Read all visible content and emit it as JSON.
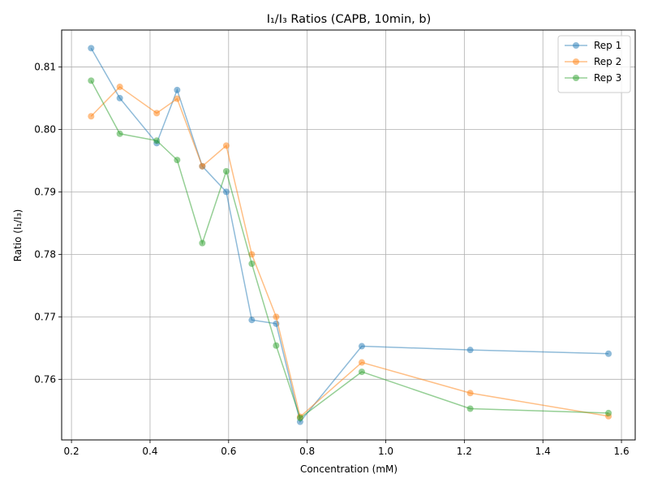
{
  "chart_data": {
    "type": "line",
    "title": "I₁/I₃ Ratios (CAPB, 10min, b)",
    "xlabel": "Concentration (mM)",
    "ylabel": "Ratio (I₁/I₃)",
    "xlim": [
      0.175,
      1.635
    ],
    "ylim": [
      0.7503,
      0.8159
    ],
    "xticks": [
      0.2,
      0.4,
      0.6,
      0.8,
      1.0,
      1.2,
      1.4,
      1.6
    ],
    "xtick_labels": [
      "0.2",
      "0.4",
      "0.6",
      "0.8",
      "1.0",
      "1.2",
      "1.4",
      "1.6"
    ],
    "yticks": [
      0.76,
      0.77,
      0.78,
      0.79,
      0.8,
      0.81
    ],
    "ytick_labels": [
      "0.76",
      "0.77",
      "0.78",
      "0.79",
      "0.80",
      "0.81"
    ],
    "grid": true,
    "legend_position": "top-right",
    "series": [
      {
        "name": "Rep 1",
        "color": "#1f77b4",
        "x": [
          0.25,
          0.323,
          0.417,
          0.469,
          0.533,
          0.594,
          0.659,
          0.721,
          0.782,
          0.939,
          1.215,
          1.567
        ],
        "y": [
          0.813,
          0.805,
          0.7978,
          0.8063,
          0.7941,
          0.79,
          0.7695,
          0.7689,
          0.7532,
          0.7653,
          0.7647,
          0.7641
        ]
      },
      {
        "name": "Rep 2",
        "color": "#ff7f0e",
        "x": [
          0.25,
          0.323,
          0.417,
          0.469,
          0.533,
          0.594,
          0.659,
          0.721,
          0.782,
          0.939,
          1.215,
          1.567
        ],
        "y": [
          0.8021,
          0.8068,
          0.8026,
          0.8049,
          0.7941,
          0.7974,
          0.78,
          0.77,
          0.754,
          0.7627,
          0.7578,
          0.7541
        ]
      },
      {
        "name": "Rep 3",
        "color": "#2ca02c",
        "x": [
          0.25,
          0.323,
          0.417,
          0.469,
          0.533,
          0.594,
          0.659,
          0.721,
          0.782,
          0.939,
          1.215,
          1.567
        ],
        "y": [
          0.8078,
          0.7993,
          0.7982,
          0.7951,
          0.7818,
          0.7933,
          0.7785,
          0.7654,
          0.7538,
          0.7612,
          0.7553,
          0.7546
        ]
      }
    ]
  }
}
